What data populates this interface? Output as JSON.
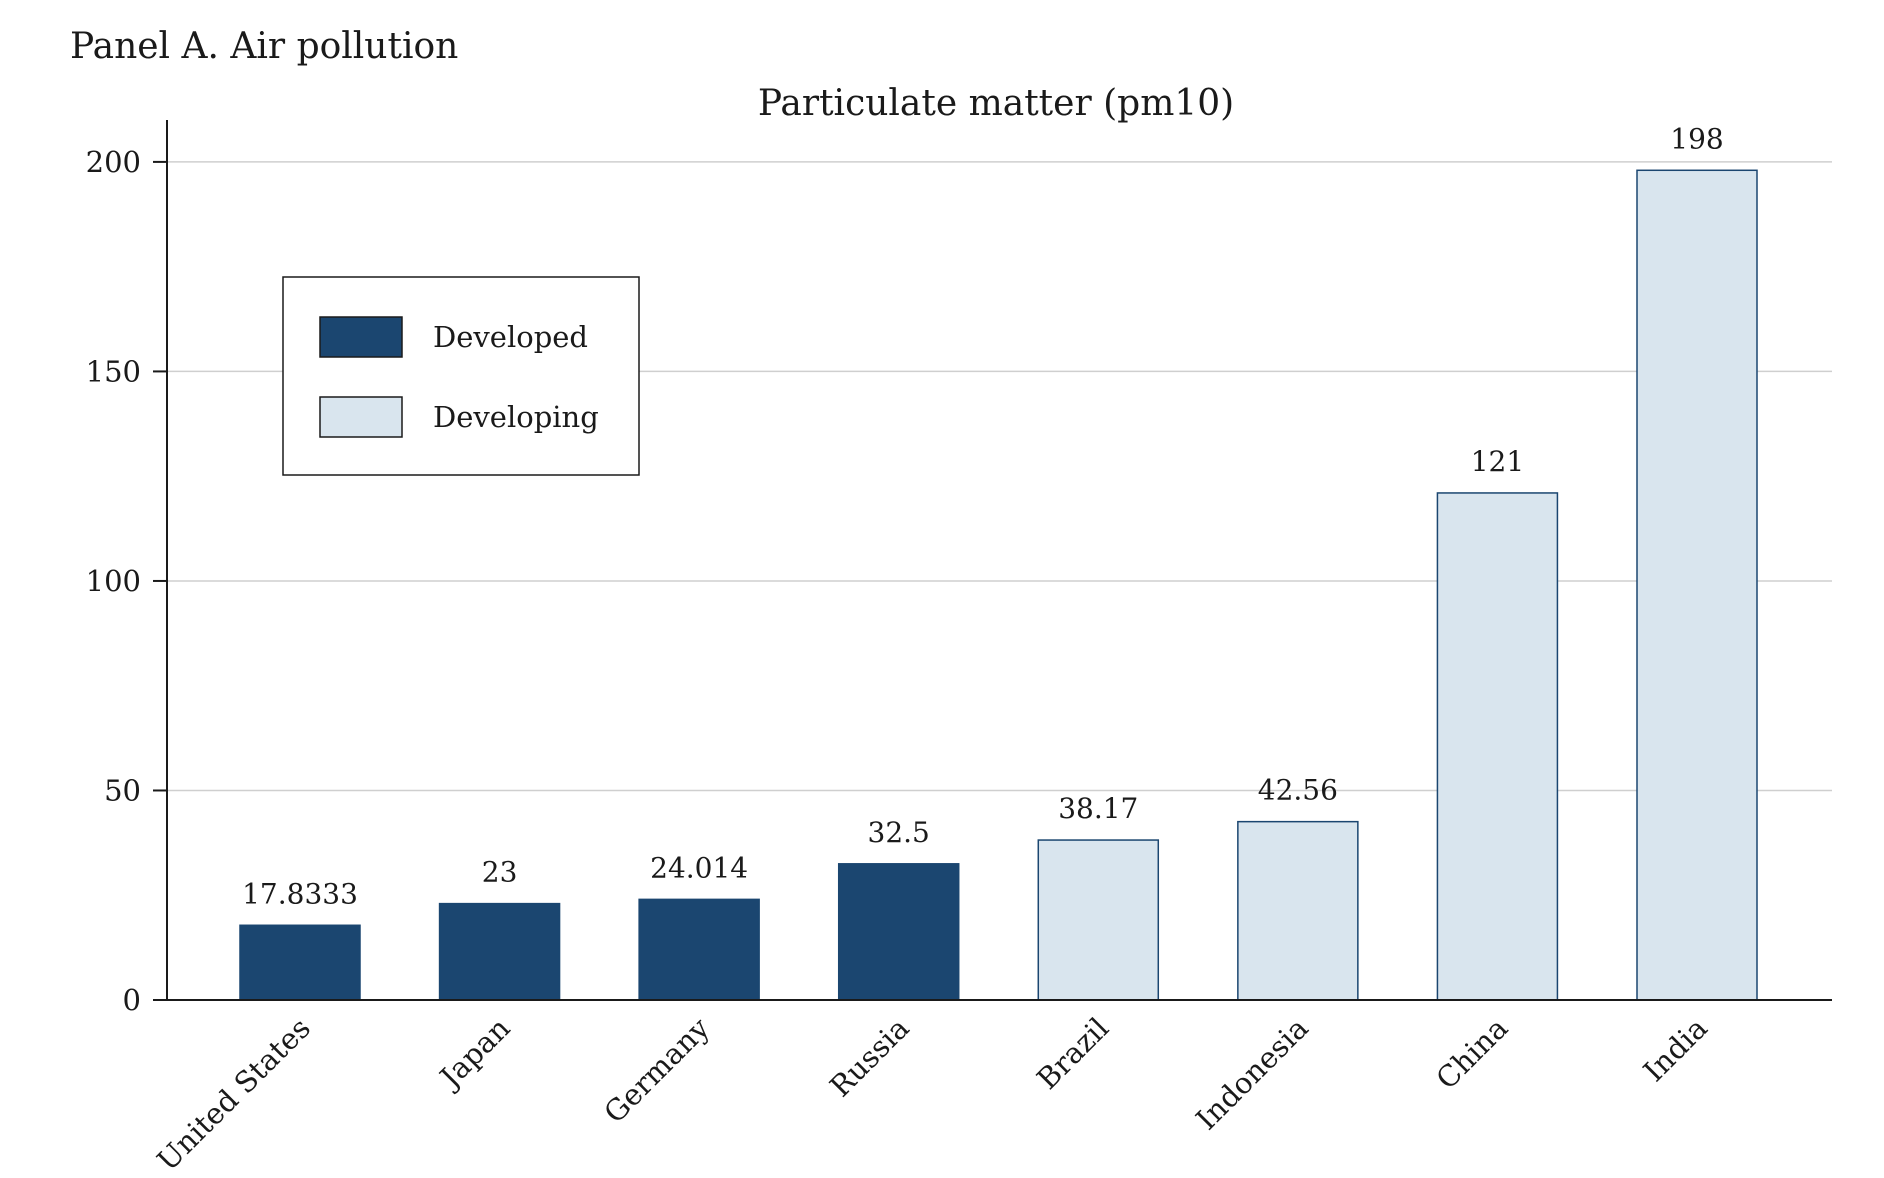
{
  "panel_title": "Panel A. Air pollution",
  "colors": {
    "developed": "#1b4670",
    "developing": "#d9e5ee",
    "bar_edge": "#1b4670",
    "gridline": "#cfcfcf",
    "axis": "#1a1a1a"
  },
  "chart_data": {
    "type": "bar",
    "title": "Particulate matter (pm10)",
    "xlabel": "",
    "ylabel": "",
    "ylim": [
      0,
      210
    ],
    "yticks": [
      0,
      50,
      100,
      150,
      200
    ],
    "grid": true,
    "legend_position": "upper-left",
    "categories": [
      "United States",
      "Japan",
      "Germany",
      "Russia",
      "Brazil",
      "Indonesia",
      "China",
      "India"
    ],
    "values": [
      17.8333,
      23,
      24.014,
      32.5,
      38.17,
      42.56,
      121,
      198
    ],
    "data_labels": [
      "17.8333",
      "23",
      "24.014",
      "32.5",
      "38.17",
      "42.56",
      "121",
      "198"
    ],
    "groups": [
      "Developed",
      "Developed",
      "Developed",
      "Developed",
      "Developing",
      "Developing",
      "Developing",
      "Developing"
    ],
    "legend": [
      {
        "label": "Developed",
        "group": "Developed"
      },
      {
        "label": "Developing",
        "group": "Developing"
      }
    ]
  }
}
